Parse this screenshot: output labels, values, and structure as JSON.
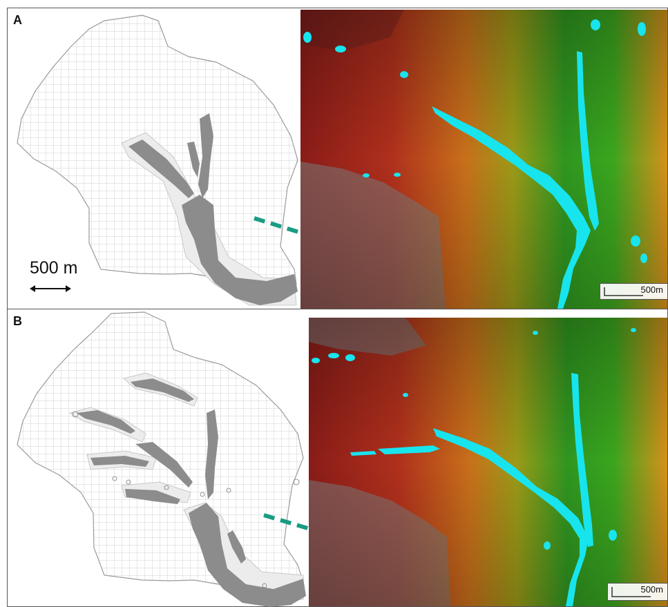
{
  "panels": [
    {
      "label": "A",
      "scale_label": "500 m",
      "dem_scale_label": "500m"
    },
    {
      "label": "B",
      "dem_scale_label": "500m"
    }
  ],
  "colors": {
    "mesh_line": "#bfbfbf",
    "channel_fill": "#8c8c8c",
    "arrow": "#1a9c84",
    "water": "#18e4ee",
    "dem_low": "#1f8a1a",
    "dem_mid": "#d68a10",
    "dem_high": "#a6201a",
    "dem_gray": "#7a7a7a"
  },
  "icons": [
    "double-arrow-icon",
    "dashed-arrow-icon"
  ]
}
